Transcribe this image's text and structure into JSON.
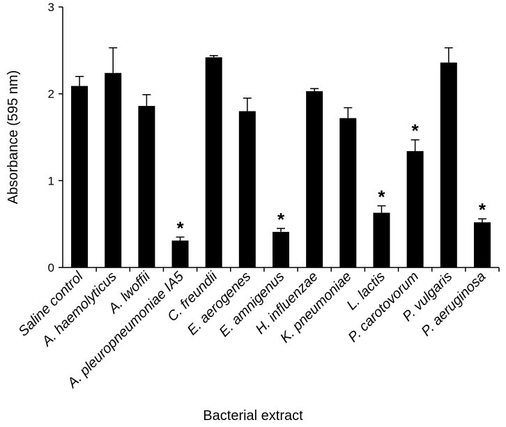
{
  "chart_data": {
    "type": "bar",
    "xlabel": "Bacterial extract",
    "ylabel": "Absorbance (595 nm)",
    "ylim": [
      0,
      3
    ],
    "yticks": [
      "0",
      "1",
      "2",
      "3"
    ],
    "categories": [
      "Saline control",
      "A. haemolyticus",
      "A. lwoffii",
      "A. pleuropneumoniae IA5",
      "C. freundii",
      "E. aerogenes",
      "E. amnigenus",
      "H. influenzae",
      "K. pneumoniae",
      "L. lactis",
      "P. carotovorum",
      "P. vulgaris",
      "P. aeruginosa"
    ],
    "values": [
      2.09,
      2.24,
      1.86,
      0.31,
      2.42,
      1.8,
      0.41,
      2.03,
      1.72,
      0.63,
      1.34,
      2.36,
      0.52
    ],
    "errors": [
      0.11,
      0.29,
      0.13,
      0.04,
      0.02,
      0.15,
      0.04,
      0.03,
      0.12,
      0.08,
      0.13,
      0.17,
      0.04
    ],
    "significance": [
      "",
      "",
      "",
      "*",
      "",
      "",
      "*",
      "",
      "",
      "*",
      "*",
      "",
      "*"
    ],
    "bar_color": "#000000"
  }
}
